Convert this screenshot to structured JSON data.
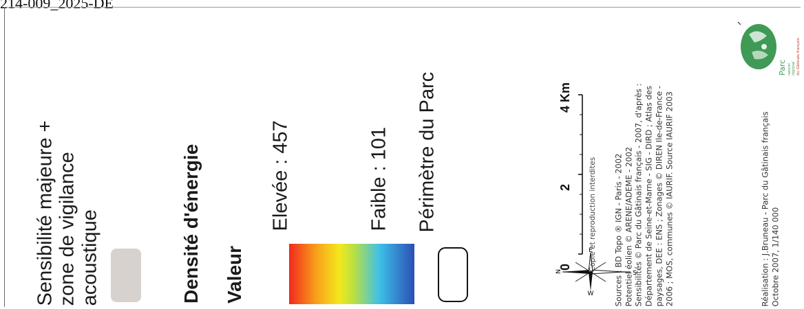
{
  "header": {
    "ref": "214-009_2025-DE"
  },
  "legend": {
    "sensibilite_lines": [
      "Sensibilité majeure +",
      "zone de vigilance",
      "acoustique"
    ],
    "densite_title": "Densité d'énergie",
    "valeur_title": "Valeur",
    "elevee_label": "Elevée : 457",
    "faible_label": "Faible : 101",
    "perimetre_label": "Périmètre du Parc",
    "colors": {
      "sensibilite": "#d8d2cf",
      "gradient": [
        "#f02a1c",
        "#f8a21a",
        "#f4e81c",
        "#b8df46",
        "#3ec0e8",
        "#2b4fb5"
      ],
      "perimetre_stroke": "#111111"
    }
  },
  "compass": {
    "n": "N",
    "s": "S",
    "e": "E",
    "w": "W"
  },
  "scale": {
    "labels": [
      "0",
      "2",
      "4 Km"
    ],
    "copyright": "Copie et reproduction interdites"
  },
  "sources": {
    "lines": [
      "Sources : BD Topo ® IGN - Paris - 2002",
      "Potentiel éolien © ARENE/ADEME - 2002",
      "Sensibilités © Parc du Gâtinais français - 2007, d'après :",
      "Département de Seine-et-Marne - SIG - DIRD ; Atlas des",
      "paysages, DEE : ENS ; Zonages © DIREN Ile-de-France -",
      "2006 ; MOS, communes © IAURIF. Source IAURIF 2003"
    ],
    "realisation_lines": [
      "Réalisation : J.Bruneau - Parc du Gâtinais français",
      "Octobre 2007, 1/140 000"
    ]
  },
  "logo": {
    "text_lines": [
      "Parc",
      "naturel",
      "régional",
      "du Gâtinais français"
    ],
    "colors": {
      "green": "#3e9a55",
      "light": "#e8f2ea"
    }
  }
}
